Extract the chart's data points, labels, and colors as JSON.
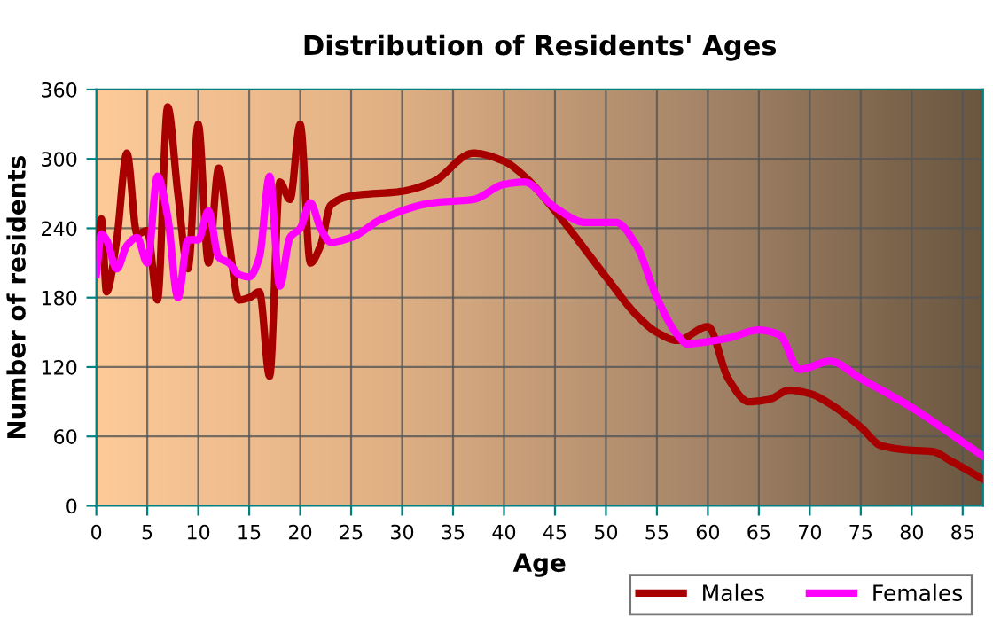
{
  "chart_data": {
    "type": "line",
    "title": "Distribution of Residents' Ages",
    "xlabel": "Age",
    "ylabel": "Number of residents",
    "xlim": [
      0,
      87
    ],
    "xticks": [
      0,
      5,
      10,
      15,
      20,
      25,
      30,
      35,
      40,
      45,
      50,
      55,
      60,
      65,
      70,
      75,
      80,
      85
    ],
    "ylim": [
      0,
      360
    ],
    "yticks": [
      0,
      60,
      120,
      180,
      240,
      300,
      360
    ],
    "grid": true,
    "legend": "bottom right",
    "marker": "none",
    "line_style": "solid",
    "series": [
      {
        "name": "Males",
        "color": "#a80000",
        "x": [
          0,
          0.5,
          1,
          2,
          3,
          4,
          5,
          6,
          7,
          8,
          9,
          10,
          11,
          12,
          13,
          14,
          15,
          16,
          17,
          18,
          19,
          20,
          21,
          22,
          23,
          25,
          30,
          33,
          37,
          40,
          42,
          45,
          50,
          53,
          55,
          57,
          60,
          62,
          64,
          66,
          68,
          70,
          72,
          75,
          77,
          80,
          82,
          84,
          87
        ],
        "values": [
          215,
          248,
          185,
          230,
          305,
          235,
          238,
          178,
          345,
          270,
          205,
          330,
          210,
          292,
          230,
          178,
          180,
          185,
          112,
          280,
          265,
          330,
          210,
          225,
          260,
          268,
          272,
          280,
          305,
          298,
          285,
          255,
          198,
          165,
          150,
          143,
          155,
          110,
          90,
          92,
          100,
          97,
          88,
          68,
          52,
          48,
          47,
          38,
          23
        ]
      },
      {
        "name": "Females",
        "color": "#ff00ff",
        "x": [
          0,
          0.5,
          1,
          2,
          3,
          4,
          5,
          6,
          7,
          8,
          9,
          10,
          11,
          12,
          13,
          14,
          15,
          16,
          17,
          18,
          19,
          20,
          21,
          22,
          23,
          25,
          28,
          33,
          37,
          40,
          42,
          45,
          48,
          51,
          53,
          55,
          57,
          58,
          60,
          62,
          65,
          67,
          69,
          72,
          75,
          80,
          85,
          87
        ],
        "values": [
          200,
          235,
          230,
          205,
          225,
          232,
          210,
          285,
          250,
          180,
          230,
          230,
          255,
          215,
          210,
          200,
          198,
          215,
          285,
          190,
          232,
          240,
          262,
          240,
          228,
          232,
          248,
          262,
          265,
          278,
          280,
          258,
          245,
          245,
          225,
          180,
          148,
          140,
          142,
          145,
          152,
          148,
          118,
          125,
          110,
          85,
          55,
          43
        ]
      }
    ]
  }
}
